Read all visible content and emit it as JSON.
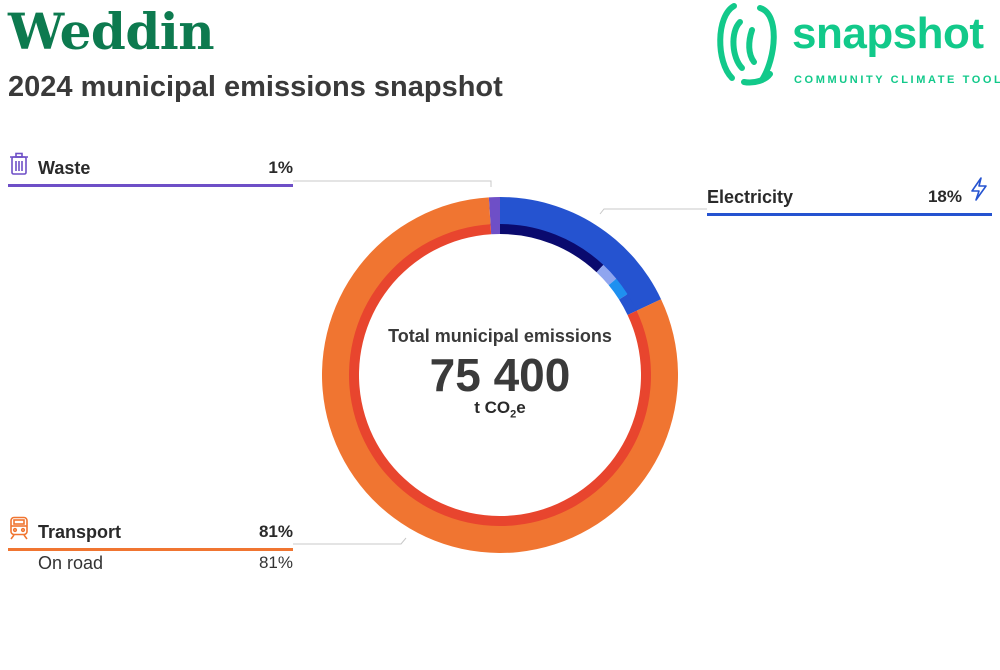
{
  "header": {
    "title": "Weddin",
    "subtitle": "2024 municipal emissions snapshot"
  },
  "logo": {
    "word": "snapshot",
    "tagline": "COMMUNITY CLIMATE TOOL",
    "color": "#12c98a",
    "icon": "fingerprint-icon"
  },
  "center": {
    "label": "Total municipal emissions",
    "value": "75 400",
    "unit_main": "t CO",
    "unit_sub": "2",
    "unit_end": "e"
  },
  "chart_data": {
    "type": "donut",
    "total": 75400,
    "unit": "t CO2e",
    "sectors": [
      {
        "name": "Waste",
        "percent_label": "1%",
        "value": 1,
        "color": "#6e4fc7",
        "inner_color": "#6e4fc7",
        "icon": "trash-icon",
        "subsectors": []
      },
      {
        "name": "Electricity",
        "percent_label": "18%",
        "value": 18,
        "color": "#2553d0",
        "inner_color": "#2553d0",
        "icon": "lightning-icon",
        "subsectors": [
          {
            "value": 12,
            "color": "#0a0a6e"
          },
          {
            "value": 2,
            "color": "#8fa5ef"
          },
          {
            "value": 2,
            "color": "#1e90f0"
          },
          {
            "value": 2,
            "color": "#2553d0"
          }
        ]
      },
      {
        "name": "Transport",
        "percent_label": "81%",
        "value": 81,
        "color": "#f07531",
        "inner_color": "#e8452e",
        "icon": "train-icon",
        "subsectors": [
          {
            "name": "On road",
            "percent_label": "81%",
            "value": 81,
            "color": "#e8452e"
          }
        ]
      }
    ]
  }
}
